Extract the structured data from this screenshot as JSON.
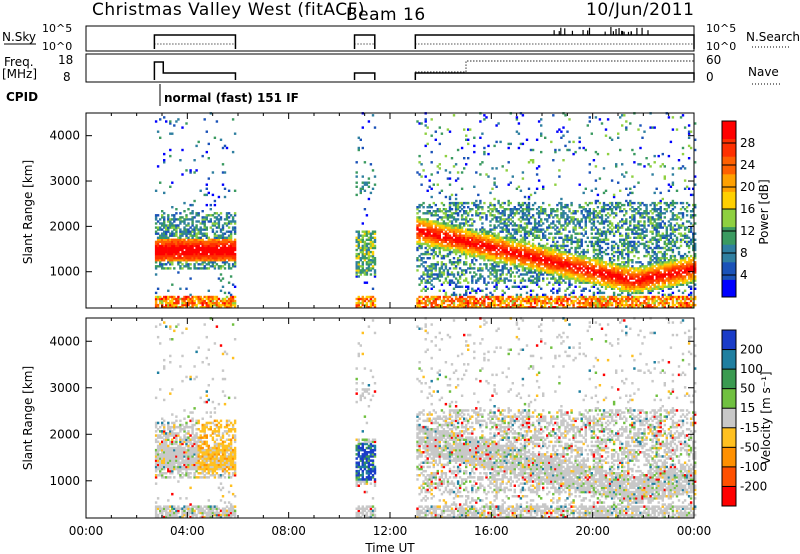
{
  "header": {
    "station": "Christmas Valley West (fitACF)",
    "beam": "Beam 16",
    "date": "10/Jun/2011"
  },
  "summary_panels": {
    "nsky_label": "N.Sky",
    "nsky_ticks": [
      "10^5",
      "10^0"
    ],
    "nsearch_label": "N.Search",
    "nsearch_ticks": [
      "10^5",
      "10^0"
    ],
    "freq_label_line1": "Freq.",
    "freq_label_line2": "[MHz]",
    "freq_ticks": [
      "18",
      "8"
    ],
    "nave_label": "Nave",
    "nave_ticks": [
      "60",
      "0"
    ],
    "cpid_label": "CPID",
    "cpid_text": "normal (fast) 151 IF"
  },
  "chart_data": [
    {
      "type": "heatmap",
      "name": "power",
      "ylabel": "Slant Range [km]",
      "xlabel": "",
      "xlim_hours": [
        0,
        24
      ],
      "ylim": [
        200,
        4500
      ],
      "yticks": [
        "1000",
        "2000",
        "3000",
        "4000"
      ],
      "colorbar_label": "Power [dB]",
      "colorbar_ticks": [
        "4",
        "8",
        "12",
        "16",
        "20",
        "24",
        "28"
      ],
      "colorbar_colors": [
        "#0000ff",
        "#1a52b8",
        "#2f7fa0",
        "#3a9a60",
        "#8ed040",
        "#ffd000",
        "#ffa000",
        "#ff6000",
        "#ff3000",
        "#ff0000"
      ],
      "data_intervals_hours": [
        [
          2.7,
          5.9
        ],
        [
          10.6,
          11.4
        ],
        [
          13.0,
          24.0
        ]
      ]
    },
    {
      "type": "heatmap",
      "name": "velocity",
      "ylabel": "Slant Range [km]",
      "xlabel": "Time UT",
      "xlim_hours": [
        0,
        24
      ],
      "ylim": [
        200,
        4500
      ],
      "yticks": [
        "1000",
        "2000",
        "3000",
        "4000"
      ],
      "xticks": [
        "00:00",
        "04:00",
        "08:00",
        "12:00",
        "16:00",
        "20:00",
        "00:00"
      ],
      "colorbar_label": "Velocity [m s^-1]",
      "colorbar_ticks": [
        "200",
        "100",
        "50",
        "15",
        "-15",
        "-50",
        "-100",
        "-200"
      ],
      "colorbar_colors": [
        "#1a3cc8",
        "#1f7fa0",
        "#3a9a50",
        "#70c040",
        "#c8c8c8",
        "#ffc020",
        "#ff9000",
        "#ff5000",
        "#ff0000"
      ],
      "data_intervals_hours": [
        [
          2.7,
          5.9
        ],
        [
          10.6,
          11.4
        ],
        [
          13.0,
          24.0
        ]
      ]
    }
  ]
}
